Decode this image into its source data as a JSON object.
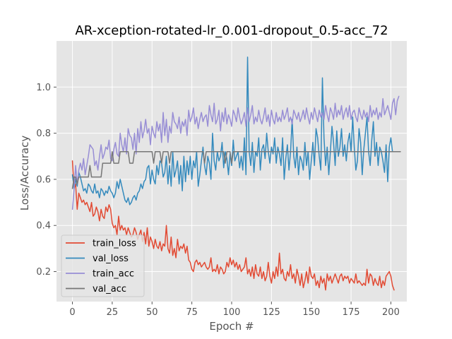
{
  "chart_data": {
    "type": "line",
    "title": "AR-xception-rotated-lr_0.001-dropout_0.5-acc_72",
    "xlabel": "Epoch #",
    "ylabel": "Loss/Accuracy",
    "xlim": [
      -10,
      210
    ],
    "ylim": [
      0.07,
      1.2
    ],
    "xticks": [
      0,
      25,
      50,
      75,
      100,
      125,
      150,
      175,
      200
    ],
    "yticks": [
      0.2,
      0.4,
      0.6,
      0.8,
      1.0
    ],
    "ytick_labels": [
      "0.2",
      "0.4",
      "0.6",
      "0.8",
      "1.0"
    ],
    "grid": true,
    "legend_position": "lower-left",
    "background": "#e5e5e5",
    "series": [
      {
        "name": "train_loss",
        "color": "#e24a33",
        "values": [
          0.68,
          0.56,
          0.58,
          0.47,
          0.54,
          0.52,
          0.5,
          0.51,
          0.49,
          0.5,
          0.48,
          0.46,
          0.5,
          0.44,
          0.45,
          0.48,
          0.46,
          0.42,
          0.47,
          0.44,
          0.43,
          0.48,
          0.46,
          0.49,
          0.47,
          0.41,
          0.39,
          0.4,
          0.36,
          0.44,
          0.38,
          0.4,
          0.38,
          0.39,
          0.36,
          0.39,
          0.37,
          0.35,
          0.36,
          0.39,
          0.37,
          0.34,
          0.36,
          0.38,
          0.33,
          0.37,
          0.32,
          0.39,
          0.31,
          0.35,
          0.33,
          0.3,
          0.34,
          0.31,
          0.3,
          0.33,
          0.29,
          0.32,
          0.31,
          0.4,
          0.3,
          0.28,
          0.35,
          0.27,
          0.3,
          0.26,
          0.34,
          0.29,
          0.31,
          0.3,
          0.32,
          0.28,
          0.31,
          0.25,
          0.24,
          0.21,
          0.2,
          0.24,
          0.25,
          0.23,
          0.24,
          0.22,
          0.23,
          0.24,
          0.22,
          0.21,
          0.22,
          0.26,
          0.2,
          0.21,
          0.2,
          0.23,
          0.19,
          0.22,
          0.21,
          0.19,
          0.2,
          0.24,
          0.22,
          0.26,
          0.23,
          0.25,
          0.22,
          0.24,
          0.21,
          0.23,
          0.2,
          0.21,
          0.22,
          0.26,
          0.19,
          0.21,
          0.18,
          0.22,
          0.17,
          0.23,
          0.19,
          0.18,
          0.22,
          0.17,
          0.2,
          0.16,
          0.18,
          0.24,
          0.18,
          0.15,
          0.2,
          0.17,
          0.22,
          0.18,
          0.28,
          0.19,
          0.21,
          0.17,
          0.16,
          0.2,
          0.18,
          0.23,
          0.17,
          0.19,
          0.15,
          0.21,
          0.18,
          0.14,
          0.19,
          0.13,
          0.16,
          0.2,
          0.15,
          0.22,
          0.18,
          0.17,
          0.19,
          0.14,
          0.16,
          0.13,
          0.18,
          0.15,
          0.17,
          0.12,
          0.19,
          0.16,
          0.18,
          0.15,
          0.17,
          0.19,
          0.17,
          0.15,
          0.18,
          0.19,
          0.16,
          0.18,
          0.17,
          0.18,
          0.15,
          0.17,
          0.16,
          0.15,
          0.19,
          0.15,
          0.16,
          0.15,
          0.14,
          0.15,
          0.14,
          0.21,
          0.15,
          0.19,
          0.18,
          0.14,
          0.17,
          0.15,
          0.14,
          0.18,
          0.13,
          0.16,
          0.14,
          0.18,
          0.19,
          0.2,
          0.18,
          0.14,
          0.12
        ]
      },
      {
        "name": "val_loss",
        "color": "#348abd",
        "values": [
          0.62,
          0.56,
          0.6,
          0.57,
          0.63,
          0.61,
          0.58,
          0.55,
          0.56,
          0.54,
          0.58,
          0.57,
          0.55,
          0.54,
          0.58,
          0.54,
          0.55,
          0.52,
          0.56,
          0.55,
          0.53,
          0.55,
          0.54,
          0.57,
          0.55,
          0.54,
          0.52,
          0.54,
          0.59,
          0.56,
          0.6,
          0.57,
          0.54,
          0.51,
          0.5,
          0.52,
          0.49,
          0.5,
          0.52,
          0.53,
          0.51,
          0.54,
          0.55,
          0.58,
          0.56,
          0.59,
          0.6,
          0.65,
          0.66,
          0.58,
          0.64,
          0.6,
          0.58,
          0.66,
          0.62,
          0.68,
          0.67,
          0.61,
          0.63,
          0.7,
          0.58,
          0.66,
          0.57,
          0.72,
          0.61,
          0.64,
          0.68,
          0.58,
          0.66,
          0.55,
          0.7,
          0.59,
          0.68,
          0.62,
          0.7,
          0.6,
          0.68,
          0.65,
          0.72,
          0.57,
          0.62,
          0.68,
          0.74,
          0.66,
          0.62,
          0.7,
          0.67,
          0.6,
          0.8,
          0.68,
          0.64,
          0.72,
          0.68,
          0.7,
          0.76,
          0.65,
          0.72,
          0.69,
          0.62,
          0.71,
          0.66,
          0.77,
          0.68,
          0.7,
          0.72,
          0.65,
          0.7,
          0.64,
          0.78,
          0.62,
          1.13,
          0.72,
          0.66,
          0.76,
          0.63,
          0.72,
          0.7,
          0.78,
          0.64,
          0.73,
          0.75,
          0.69,
          0.8,
          0.72,
          0.67,
          0.74,
          0.71,
          0.78,
          0.67,
          0.74,
          0.71,
          0.66,
          0.78,
          0.6,
          0.69,
          0.75,
          0.64,
          0.72,
          0.86,
          0.7,
          0.65,
          0.74,
          0.62,
          0.7,
          0.68,
          0.64,
          0.76,
          0.66,
          0.72,
          0.6,
          0.68,
          0.76,
          0.66,
          0.82,
          0.78,
          0.7,
          0.64,
          1.04,
          0.78,
          0.66,
          0.74,
          0.62,
          0.72,
          0.83,
          0.76,
          0.66,
          0.81,
          0.7,
          0.74,
          0.82,
          0.7,
          0.75,
          0.68,
          0.76,
          0.8,
          0.72,
          0.87,
          0.74,
          0.64,
          0.68,
          0.82,
          0.76,
          0.62,
          0.73,
          0.8,
          0.87,
          0.72,
          0.66,
          0.77,
          0.85,
          0.7,
          0.76,
          0.66,
          0.74,
          0.72,
          0.68,
          0.63,
          0.75,
          0.59,
          0.74,
          0.78,
          0.72
        ]
      },
      {
        "name": "train_acc",
        "color": "#988ed5",
        "values": [
          0.47,
          0.55,
          0.66,
          0.58,
          0.64,
          0.67,
          0.64,
          0.69,
          0.62,
          0.66,
          0.7,
          0.75,
          0.74,
          0.73,
          0.66,
          0.68,
          0.64,
          0.7,
          0.75,
          0.69,
          0.71,
          0.74,
          0.73,
          0.77,
          0.69,
          0.68,
          0.73,
          0.76,
          0.71,
          0.7,
          0.8,
          0.75,
          0.72,
          0.78,
          0.71,
          0.82,
          0.79,
          0.78,
          0.73,
          0.8,
          0.71,
          0.82,
          0.76,
          0.85,
          0.78,
          0.81,
          0.86,
          0.8,
          0.82,
          0.75,
          0.83,
          0.8,
          0.78,
          0.85,
          0.81,
          0.84,
          0.76,
          0.89,
          0.79,
          0.86,
          0.76,
          0.83,
          0.8,
          0.89,
          0.85,
          0.84,
          0.82,
          0.87,
          0.8,
          0.85,
          0.83,
          0.86,
          0.79,
          0.9,
          0.85,
          0.87,
          0.91,
          0.84,
          0.87,
          0.82,
          0.86,
          0.89,
          0.85,
          0.87,
          0.88,
          0.83,
          0.92,
          0.88,
          0.85,
          0.93,
          0.84,
          0.86,
          0.9,
          0.81,
          0.89,
          0.85,
          0.91,
          0.84,
          0.88,
          0.86,
          0.83,
          0.9,
          0.88,
          0.85,
          0.91,
          0.87,
          0.84,
          0.86,
          0.89,
          0.83,
          0.91,
          0.85,
          0.88,
          0.92,
          0.84,
          0.87,
          0.85,
          0.9,
          0.86,
          0.84,
          0.87,
          0.91,
          0.85,
          0.88,
          0.83,
          0.9,
          0.86,
          0.84,
          0.89,
          0.85,
          0.87,
          0.85,
          0.9,
          0.86,
          0.88,
          0.91,
          0.85,
          0.87,
          0.84,
          0.9,
          0.88,
          0.86,
          0.89,
          0.85,
          0.87,
          0.9,
          0.86,
          0.91,
          0.87,
          0.84,
          0.89,
          0.86,
          0.91,
          0.88,
          0.85,
          0.9,
          0.87,
          0.89,
          0.86,
          0.92,
          0.88,
          0.85,
          0.91,
          0.89,
          0.86,
          0.93,
          0.87,
          0.9,
          0.88,
          0.92,
          0.86,
          0.89,
          0.91,
          0.87,
          0.92,
          0.86,
          0.89,
          0.9,
          0.87,
          0.85,
          0.91,
          0.88,
          0.86,
          0.9,
          0.87,
          0.89,
          0.85,
          0.92,
          0.87,
          0.9,
          0.88,
          0.91,
          0.86,
          0.89,
          0.87,
          0.95,
          0.88,
          0.9,
          0.92,
          0.89,
          0.86,
          0.93,
          0.95,
          0.88,
          0.94,
          0.96
        ]
      },
      {
        "name": "val_acc",
        "color": "#777777",
        "values": [
          0.56,
          0.61,
          0.61,
          0.58,
          0.61,
          0.61,
          0.61,
          0.61,
          0.61,
          0.61,
          0.61,
          0.66,
          0.61,
          0.61,
          0.61,
          0.61,
          0.61,
          0.61,
          0.61,
          0.67,
          0.67,
          0.67,
          0.67,
          0.67,
          0.67,
          0.72,
          0.67,
          0.67,
          0.67,
          0.67,
          0.72,
          0.72,
          0.72,
          0.72,
          0.72,
          0.72,
          0.67,
          0.67,
          0.67,
          0.72,
          0.72,
          0.72,
          0.72,
          0.72,
          0.72,
          0.72,
          0.72,
          0.72,
          0.72,
          0.72,
          0.72,
          0.67,
          0.72,
          0.72,
          0.72,
          0.72,
          0.67,
          0.72,
          0.72,
          0.72,
          0.72,
          0.67,
          0.72,
          0.72,
          0.72,
          0.72,
          0.72,
          0.72,
          0.72,
          0.72,
          0.72,
          0.72,
          0.72,
          0.72,
          0.72,
          0.72,
          0.72,
          0.72,
          0.72,
          0.72,
          0.72,
          0.72,
          0.72,
          0.67,
          0.72,
          0.72,
          0.72,
          0.72,
          0.72,
          0.72,
          0.72,
          0.72,
          0.72,
          0.72,
          0.72,
          0.72,
          0.67,
          0.72,
          0.72,
          0.72,
          0.67,
          0.72,
          0.72,
          0.72,
          0.72,
          0.72,
          0.72,
          0.72,
          0.72,
          0.72,
          0.72,
          0.72,
          0.72,
          0.72,
          0.72,
          0.72,
          0.72,
          0.72,
          0.72,
          0.72,
          0.72,
          0.72,
          0.72,
          0.72,
          0.72,
          0.72,
          0.72,
          0.72,
          0.72,
          0.72,
          0.72,
          0.72,
          0.72,
          0.72,
          0.72,
          0.72,
          0.72,
          0.72,
          0.72,
          0.72,
          0.72,
          0.72,
          0.72,
          0.72,
          0.72,
          0.72,
          0.72,
          0.72,
          0.72,
          0.72,
          0.72,
          0.72,
          0.72,
          0.72,
          0.72,
          0.72,
          0.72,
          0.72,
          0.72,
          0.72,
          0.72,
          0.72,
          0.72,
          0.72,
          0.72,
          0.72,
          0.72,
          0.72,
          0.72,
          0.72,
          0.72,
          0.72,
          0.72,
          0.72,
          0.72,
          0.72,
          0.72,
          0.72,
          0.72,
          0.72,
          0.72,
          0.72,
          0.72,
          0.72,
          0.72,
          0.72,
          0.72,
          0.72,
          0.72,
          0.72,
          0.72,
          0.72,
          0.72,
          0.72,
          0.72,
          0.72,
          0.72,
          0.72,
          0.72,
          0.72,
          0.72,
          0.72,
          0.72,
          0.72,
          0.72,
          0.72,
          0.72
        ]
      }
    ]
  }
}
